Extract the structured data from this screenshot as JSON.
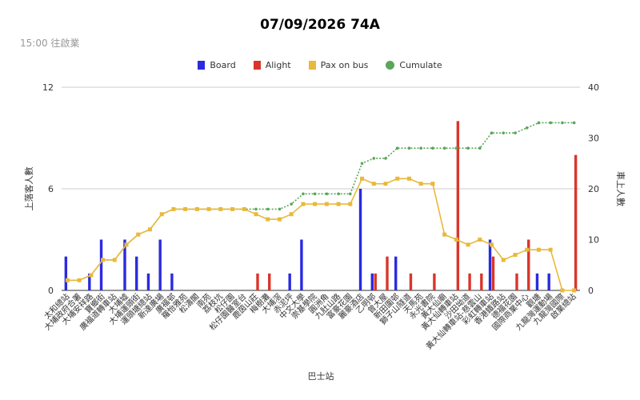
{
  "chart_data": {
    "type": "bar",
    "title": "07/09/2026 74A",
    "subtitle": "15:00 往啟業",
    "xlabel": "巴士站",
    "ylabel_left": "上落客人數",
    "ylabel_right": "車上人數",
    "ylim_left": [
      0,
      12
    ],
    "ylim_right": [
      0,
      40
    ],
    "yticks_left": [
      "0",
      "6",
      "12"
    ],
    "yticks_right": [
      "0",
      "10",
      "20",
      "30",
      "40"
    ],
    "legend_position": "top",
    "categories": [
      "太和總站",
      "大埔政府合署",
      "大埔安祥路",
      "寶鄉街",
      "廣福道轉車站",
      "大埔墟",
      "大埔運頭街",
      "運頭塘總站",
      "新達廣場",
      "廣福邨",
      "羅怡雅苑",
      "松濤閣",
      "南苑",
      "荔枝坑",
      "松仔園",
      "松仔園醫室台",
      "鹿茵山莊",
      "梅樹灘",
      "大埔滘",
      "赤泥坪",
      "中文大學",
      "崇基學院",
      "圓洲角",
      "九肚山路",
      "富豪花園",
      "麗豪酒店",
      "乙明邨",
      "曾大屋",
      "新田圍邨",
      "獅子山隧道",
      "天馬苑",
      "永光書院",
      "黃大仙廟",
      "黃大仙轉車站",
      "沙田坳道",
      "黃大仙轉車站-慈雲山",
      "彩虹轉車站",
      "香港鐵路站",
      "德福花園",
      "國際商業中心",
      "觀塘",
      "九龍灣運動場",
      "九龍灣國際",
      "啟業總站"
    ],
    "series": [
      {
        "name": "Board",
        "axis": "left",
        "color": "#2a2ae0",
        "values": [
          2,
          0,
          1,
          3,
          0,
          3,
          2,
          1,
          3,
          1,
          0,
          0,
          0,
          0,
          0,
          0,
          0,
          0,
          0,
          1,
          3,
          0,
          0,
          0,
          0,
          6,
          1,
          0,
          2,
          0,
          0,
          0,
          0,
          0,
          0,
          0,
          3,
          0,
          0,
          0,
          1,
          1,
          0,
          0
        ]
      },
      {
        "name": "Alight",
        "axis": "left",
        "color": "#d9362b",
        "values": [
          0,
          0,
          0,
          0,
          0,
          0,
          0,
          0,
          0,
          0,
          0,
          0,
          0,
          0,
          0,
          0,
          1,
          1,
          0,
          0,
          0,
          0,
          0,
          0,
          0,
          0,
          1,
          2,
          0,
          1,
          0,
          1,
          0,
          10,
          1,
          1,
          2,
          0,
          1,
          3,
          0,
          0,
          0,
          8
        ]
      },
      {
        "name": "Pax on bus",
        "axis": "right",
        "color": "#e8b93b",
        "values": [
          2,
          2,
          3,
          6,
          6,
          9,
          11,
          12,
          15,
          16,
          16,
          16,
          16,
          16,
          16,
          16,
          15,
          14,
          14,
          15,
          17,
          17,
          17,
          17,
          17,
          22,
          21,
          21,
          22,
          22,
          21,
          21,
          11,
          10,
          9,
          10,
          9,
          6,
          7,
          8,
          8,
          8,
          0,
          0
        ]
      },
      {
        "name": "Cumulate",
        "axis": "right",
        "color": "#5aa65a",
        "values": [
          2,
          2,
          3,
          6,
          6,
          9,
          11,
          12,
          15,
          16,
          16,
          16,
          16,
          16,
          16,
          16,
          16,
          16,
          16,
          17,
          19,
          19,
          19,
          19,
          19,
          25,
          26,
          26,
          28,
          28,
          28,
          28,
          28,
          28,
          28,
          28,
          31,
          31,
          31,
          32,
          33,
          33,
          33,
          33
        ]
      }
    ]
  }
}
